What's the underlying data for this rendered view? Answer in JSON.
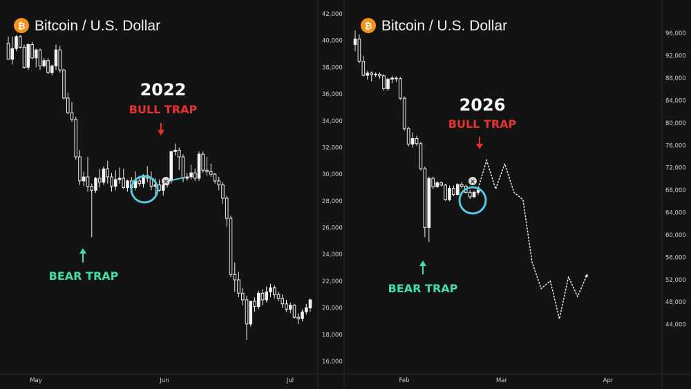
{
  "colors": {
    "background": "#131313",
    "candle": "#f2f2f2",
    "bull_trap": "#e8322f",
    "bear_trap": "#3ee0a6",
    "circle": "#55c8e0",
    "logo": "#f7931a",
    "axis_text": "#cfcfcf"
  },
  "chart_data": [
    {
      "type": "candlestick",
      "title": "Bitcoin / U.S. Dollar",
      "logo_icon": "bitcoin-icon",
      "year_label": "2022",
      "annotations": {
        "bull_trap": "BULL TRAP",
        "bear_trap": "BEAR TRAP"
      },
      "ylim": [
        16000,
        42000
      ],
      "y_ticks": [
        "42,000",
        "40,000",
        "38,000",
        "36,000",
        "34,000",
        "32,000",
        "30,000",
        "28,000",
        "26,000",
        "24,000",
        "22,000",
        "20,000",
        "18,000",
        "16,000"
      ],
      "x_ticks": [
        "May",
        "Jun",
        "Jul"
      ],
      "scale": "linear",
      "candles": [
        [
          39800,
          40300,
          38600,
          38600
        ],
        [
          38600,
          40300,
          38200,
          39400
        ],
        [
          39400,
          40400,
          39200,
          40300
        ],
        [
          40300,
          40400,
          39400,
          39500
        ],
        [
          39500,
          39700,
          37900,
          38000
        ],
        [
          38000,
          39800,
          37800,
          39700
        ],
        [
          39700,
          39900,
          38600,
          38700
        ],
        [
          38700,
          39400,
          38000,
          39300
        ],
        [
          39300,
          39400,
          37800,
          38100
        ],
        [
          38100,
          38700,
          38000,
          38500
        ],
        [
          38500,
          38700,
          37500,
          37600
        ],
        [
          37600,
          38200,
          37400,
          38100
        ],
        [
          38100,
          39700,
          37800,
          39300
        ],
        [
          39300,
          39600,
          37600,
          37800
        ],
        [
          37800,
          37900,
          35600,
          35700
        ],
        [
          35700,
          36100,
          34500,
          34600
        ],
        [
          34600,
          35400,
          33900,
          34100
        ],
        [
          34100,
          34300,
          31100,
          31300
        ],
        [
          31300,
          31800,
          29200,
          29500
        ],
        [
          29500,
          30200,
          29100,
          29800
        ],
        [
          29800,
          31300,
          28700,
          29100
        ],
        [
          29100,
          29300,
          25300,
          28800
        ],
        [
          28800,
          29800,
          28600,
          29700
        ],
        [
          29700,
          30400,
          29000,
          29400
        ],
        [
          29400,
          30600,
          29200,
          30400
        ],
        [
          30400,
          31000,
          29300,
          29800
        ],
        [
          29800,
          30100,
          28700,
          29100
        ],
        [
          29100,
          30300,
          28800,
          29600
        ],
        [
          29600,
          30500,
          29300,
          29700
        ],
        [
          29700,
          30400,
          28900,
          29000
        ],
        [
          29000,
          29600,
          28700,
          29500
        ],
        [
          29500,
          29800,
          28700,
          29000
        ],
        [
          29000,
          30200,
          28800,
          29500
        ],
        [
          29500,
          29800,
          29100,
          29300
        ],
        [
          29300,
          30000,
          29000,
          29900
        ],
        [
          29900,
          30600,
          29400,
          29700
        ],
        [
          29700,
          30200,
          28800,
          29100
        ],
        [
          29100,
          29700,
          28500,
          29200
        ],
        [
          29200,
          29600,
          28700,
          28800
        ],
        [
          28800,
          29400,
          28400,
          29200
        ],
        [
          29200,
          29800,
          29000,
          29500
        ],
        [
          29500,
          31700,
          29300,
          31700
        ],
        [
          31700,
          32300,
          31400,
          31800
        ],
        [
          31800,
          32000,
          30300,
          31300
        ],
        [
          31300,
          31500,
          29400,
          29700
        ],
        [
          29700,
          30100,
          29500,
          29800
        ],
        [
          29800,
          30700,
          29600,
          30100
        ],
        [
          30100,
          30400,
          29500,
          29700
        ],
        [
          29700,
          31700,
          29500,
          31500
        ],
        [
          31500,
          31700,
          30100,
          30300
        ],
        [
          30300,
          31300,
          29900,
          30200
        ],
        [
          30200,
          30800,
          29800,
          30000
        ],
        [
          30000,
          30100,
          29300,
          29500
        ],
        [
          29500,
          29800,
          28800,
          29200
        ],
        [
          29200,
          29400,
          27800,
          28200
        ],
        [
          28200,
          28400,
          26100,
          26700
        ],
        [
          26700,
          26900,
          22300,
          22500
        ],
        [
          22500,
          23400,
          21200,
          22100
        ],
        [
          22100,
          22700,
          20800,
          21100
        ],
        [
          21100,
          21500,
          20200,
          20600
        ],
        [
          20600,
          20900,
          17600,
          18800
        ],
        [
          18800,
          20500,
          18600,
          20500
        ],
        [
          20500,
          20800,
          19700,
          20100
        ],
        [
          20100,
          21300,
          19900,
          21100
        ],
        [
          21100,
          21400,
          20200,
          20600
        ],
        [
          20600,
          21600,
          20400,
          21200
        ],
        [
          21200,
          21800,
          20800,
          21500
        ],
        [
          21500,
          21700,
          20700,
          21000
        ],
        [
          21000,
          21200,
          20500,
          20700
        ],
        [
          20700,
          21000,
          20000,
          20300
        ],
        [
          20300,
          20600,
          19700,
          19900
        ],
        [
          19900,
          20400,
          19600,
          20200
        ],
        [
          20200,
          20300,
          19200,
          19300
        ],
        [
          19300,
          19600,
          18800,
          19200
        ],
        [
          19200,
          19900,
          19000,
          19700
        ],
        [
          19700,
          20300,
          19500,
          20000
        ],
        [
          20000,
          20700,
          19700,
          20600
        ]
      ]
    },
    {
      "type": "candlestick",
      "title": "Bitcoin / U.S. Dollar",
      "logo_icon": "bitcoin-icon",
      "year_label": "2026",
      "annotations": {
        "bull_trap": "BULL TRAP",
        "bear_trap": "BEAR TRAP"
      },
      "ylim": [
        40000,
        98000
      ],
      "y_ticks": [
        "96,000",
        "92,000",
        "88,000",
        "84,000",
        "80,000",
        "76,000",
        "72,000",
        "68,000",
        "64,000",
        "60,000",
        "56,000",
        "52,000",
        "48,000",
        "44,000"
      ],
      "x_ticks": [
        "Feb",
        "Mar",
        "Apr"
      ],
      "scale": "linear",
      "candles": [
        [
          94000,
          96500,
          92800,
          95000
        ],
        [
          95000,
          95800,
          90700,
          91000
        ],
        [
          91000,
          92000,
          88300,
          88500
        ],
        [
          88500,
          89300,
          87700,
          88900
        ],
        [
          88900,
          89200,
          87400,
          88600
        ],
        [
          88600,
          89000,
          88200,
          88700
        ],
        [
          88700,
          89000,
          87900,
          88400
        ],
        [
          88400,
          88700,
          85800,
          86100
        ],
        [
          86100,
          88100,
          85700,
          87800
        ],
        [
          87800,
          88400,
          87100,
          88000
        ],
        [
          88000,
          88300,
          87300,
          87900
        ],
        [
          87900,
          88200,
          84100,
          84400
        ],
        [
          84400,
          84700,
          78600,
          79000
        ],
        [
          79000,
          79300,
          75800,
          76200
        ],
        [
          76200,
          78300,
          75600,
          77200
        ],
        [
          77200,
          77700,
          75900,
          76300
        ],
        [
          76300,
          76600,
          71500,
          71800
        ],
        [
          71800,
          72200,
          59600,
          61300
        ],
        [
          61300,
          70400,
          58700,
          70100
        ],
        [
          70100,
          70400,
          68200,
          68600
        ],
        [
          68600,
          69600,
          68400,
          69300
        ],
        [
          69300,
          69500,
          68600,
          68900
        ],
        [
          68900,
          69100,
          66100,
          66300
        ],
        [
          66300,
          68800,
          66000,
          68300
        ],
        [
          68300,
          68800,
          66900,
          67200
        ],
        [
          67200,
          69200,
          67000,
          69000
        ],
        [
          69000,
          69400,
          68300,
          68700
        ],
        [
          68700,
          69000,
          67400,
          67600
        ],
        [
          67600,
          68000,
          66400,
          66800
        ],
        [
          66800,
          67900,
          66600,
          67600
        ],
        [
          67600,
          68300,
          67100,
          67900
        ]
      ],
      "projection": {
        "style": "dotted",
        "points": [
          [
            0,
            67900
          ],
          [
            2,
            73300
          ],
          [
            4,
            68200
          ],
          [
            6,
            72700
          ],
          [
            8,
            67600
          ],
          [
            10,
            66300
          ],
          [
            12,
            55100
          ],
          [
            14,
            50400
          ],
          [
            16,
            51800
          ],
          [
            18,
            45000
          ],
          [
            20,
            52500
          ],
          [
            22,
            49000
          ],
          [
            24,
            52700
          ]
        ]
      }
    }
  ]
}
